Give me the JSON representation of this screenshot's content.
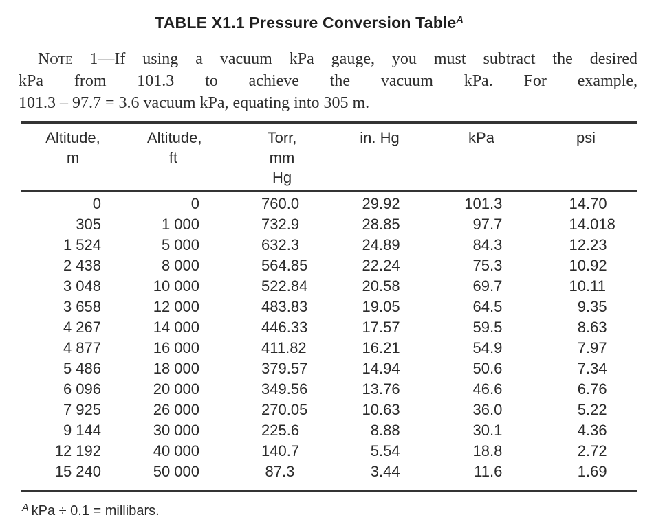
{
  "title": {
    "text": "TABLE X1.1 Pressure Conversion Table",
    "superscript": "A"
  },
  "note": {
    "label_smallcaps": "Note",
    "line1_rest": " 1—If using a vacuum kPa gauge, you must subtract the desired",
    "line2": "kPa from 101.3 to achieve the vacuum kPa. For example,",
    "line3": "101.3 – 97.7 = 3.6 vacuum kPa, equating into 305 m."
  },
  "table": {
    "columns": [
      {
        "id": "altitude_m",
        "header_line1": "Altitude,",
        "header_line2": "m"
      },
      {
        "id": "altitude_ft",
        "header_line1": "Altitude,",
        "header_line2": "ft"
      },
      {
        "id": "torr_mm_hg",
        "header_line1": "Torr,",
        "header_line2": "mm Hg"
      },
      {
        "id": "in_hg",
        "header_line1": "",
        "header_line2": "in. Hg"
      },
      {
        "id": "kpa",
        "header_line1": "",
        "header_line2": "kPa"
      },
      {
        "id": "psi",
        "header_line1": "",
        "header_line2": "psi"
      }
    ],
    "rows": [
      [
        "0",
        "0",
        "760.0",
        "29.92",
        "101.3",
        "14.70"
      ],
      [
        "305",
        "1 000",
        "732.9",
        "28.85",
        "97.7",
        "14.018"
      ],
      [
        "1 524",
        "5 000",
        "632.3",
        "24.89",
        "84.3",
        "12.23"
      ],
      [
        "2 438",
        "8 000",
        "564.85",
        "22.24",
        "75.3",
        "10.92"
      ],
      [
        "3 048",
        "10 000",
        "522.84",
        "20.58",
        "69.7",
        "10.11"
      ],
      [
        "3 658",
        "12 000",
        "483.83",
        "19.05",
        "64.5",
        "9.35"
      ],
      [
        "4 267",
        "14 000",
        "446.33",
        "17.57",
        "59.5",
        "8.63"
      ],
      [
        "4 877",
        "16 000",
        "411.82",
        "16.21",
        "54.9",
        "7.97"
      ],
      [
        "5 486",
        "18 000",
        "379.57",
        "14.94",
        "50.6",
        "7.34"
      ],
      [
        "6 096",
        "20 000",
        "349.56",
        "13.76",
        "46.6",
        "6.76"
      ],
      [
        "7 925",
        "26 000",
        "270.05",
        "10.63",
        "36.0",
        "5.22"
      ],
      [
        "9 144",
        "30 000",
        "225.6",
        "8.88",
        "30.1",
        "4.36"
      ],
      [
        "12 192",
        "40 000",
        "140.7",
        "5.54",
        "18.8",
        "2.72"
      ],
      [
        "15 240",
        "50 000",
        "87.3",
        "3.44",
        "11.6",
        "1.69"
      ]
    ]
  },
  "footnote": {
    "superscript": "A",
    "text": "kPa ÷ 0.1 = millibars."
  }
}
